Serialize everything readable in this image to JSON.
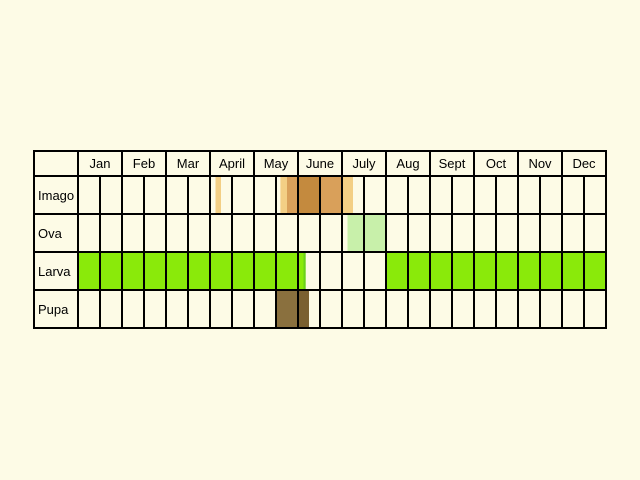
{
  "chart_data": {
    "type": "table",
    "months": [
      "Jan",
      "Feb",
      "Mar",
      "April",
      "May",
      "June",
      "July",
      "Aug",
      "Sept",
      "Oct",
      "Nov",
      "Dec"
    ],
    "stages": [
      {
        "label": "Imago",
        "periods": [
          {
            "start": 6.25,
            "end": 6.5,
            "color": "#f3cf85"
          },
          {
            "start": 9.2,
            "end": 9.5,
            "color": "#f3cf85"
          },
          {
            "start": 9.5,
            "end": 10.0,
            "color": "#d9a05a"
          },
          {
            "start": 10.0,
            "end": 11.0,
            "color": "#c48a3e"
          },
          {
            "start": 11.0,
            "end": 12.0,
            "color": "#d9a05a"
          },
          {
            "start": 12.0,
            "end": 12.5,
            "color": "#f3cf85"
          }
        ]
      },
      {
        "label": "Ova",
        "periods": [
          {
            "start": 12.25,
            "end": 14.0,
            "color": "#c8f0aa"
          }
        ]
      },
      {
        "label": "Larva",
        "periods": [
          {
            "start": 0,
            "end": 10.25,
            "color": "#8aea0a"
          },
          {
            "start": 10.25,
            "end": 10.35,
            "color": "#6bd21a"
          },
          {
            "start": 14.0,
            "end": 24.0,
            "color": "#8aea0a"
          }
        ]
      },
      {
        "label": "Pupa",
        "periods": [
          {
            "start": 9.0,
            "end": 10.0,
            "color": "#8a703e"
          },
          {
            "start": 10.0,
            "end": 10.5,
            "color": "#7a6030"
          }
        ]
      }
    ]
  }
}
